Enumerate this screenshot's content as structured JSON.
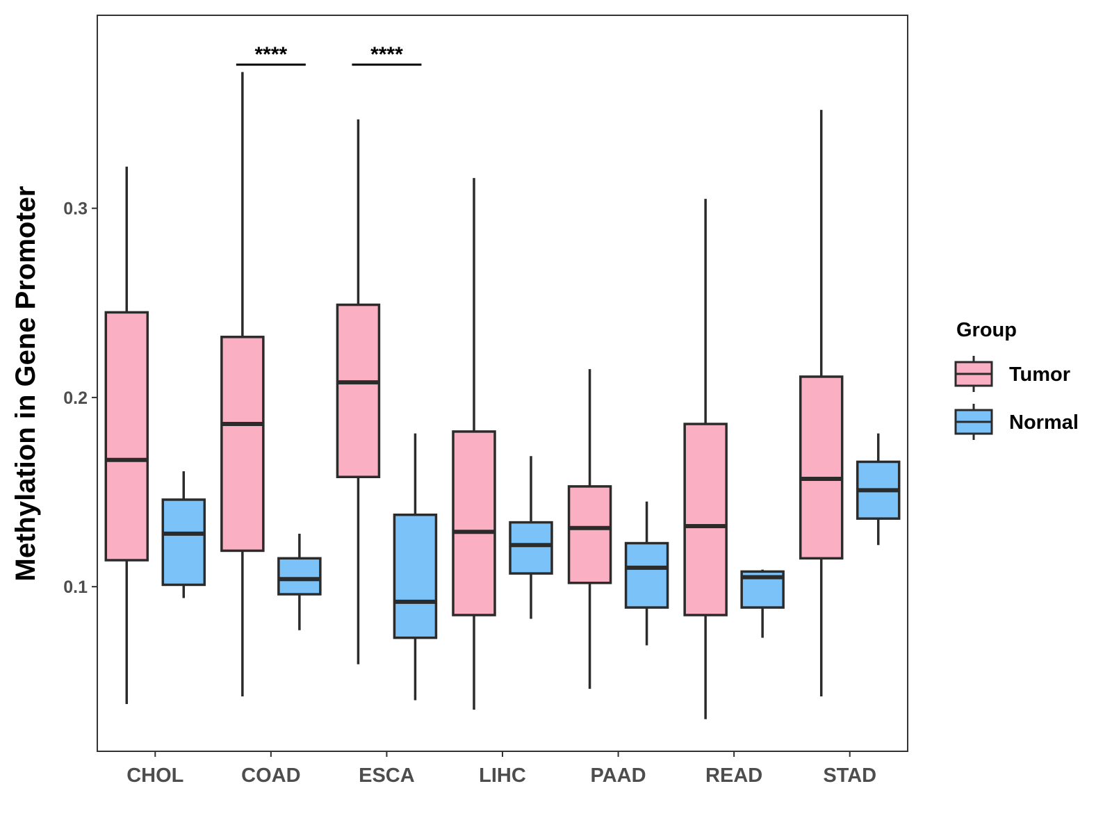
{
  "chart_data": {
    "type": "boxplot",
    "title": "",
    "xlabel": "",
    "ylabel": "Methylation in Gene Promoter",
    "ylim": [
      0.013,
      0.402
    ],
    "yticks": [
      0.1,
      0.2,
      0.3
    ],
    "ytick_labels": [
      "0.1",
      "0.2",
      "0.3"
    ],
    "categories": [
      "CHOL",
      "COAD",
      "ESCA",
      "LIHC",
      "PAAD",
      "READ",
      "STAD"
    ],
    "legend": {
      "title": "Group",
      "position": "right",
      "entries": [
        {
          "label": "Tumor",
          "color": "#FBAFC2"
        },
        {
          "label": "Normal",
          "color": "#7AC2F8"
        }
      ]
    },
    "series": [
      {
        "name": "Tumor",
        "color": "#FBAFC2",
        "boxes": [
          {
            "min": 0.038,
            "q1": 0.114,
            "median": 0.167,
            "q3": 0.245,
            "max": 0.322
          },
          {
            "min": 0.042,
            "q1": 0.119,
            "median": 0.186,
            "q3": 0.232,
            "max": 0.372
          },
          {
            "min": 0.059,
            "q1": 0.158,
            "median": 0.208,
            "q3": 0.249,
            "max": 0.347
          },
          {
            "min": 0.035,
            "q1": 0.085,
            "median": 0.129,
            "q3": 0.182,
            "max": 0.316
          },
          {
            "min": 0.046,
            "q1": 0.102,
            "median": 0.131,
            "q3": 0.153,
            "max": 0.215
          },
          {
            "min": 0.03,
            "q1": 0.085,
            "median": 0.132,
            "q3": 0.186,
            "max": 0.305
          },
          {
            "min": 0.042,
            "q1": 0.115,
            "median": 0.157,
            "q3": 0.211,
            "max": 0.352
          }
        ]
      },
      {
        "name": "Normal",
        "color": "#7AC2F8",
        "boxes": [
          {
            "min": 0.094,
            "q1": 0.101,
            "median": 0.128,
            "q3": 0.146,
            "max": 0.161
          },
          {
            "min": 0.077,
            "q1": 0.096,
            "median": 0.104,
            "q3": 0.115,
            "max": 0.128
          },
          {
            "min": 0.04,
            "q1": 0.073,
            "median": 0.092,
            "q3": 0.138,
            "max": 0.181
          },
          {
            "min": 0.083,
            "q1": 0.107,
            "median": 0.122,
            "q3": 0.134,
            "max": 0.169
          },
          {
            "min": 0.069,
            "q1": 0.089,
            "median": 0.11,
            "q3": 0.123,
            "max": 0.145
          },
          {
            "min": 0.073,
            "q1": 0.089,
            "median": 0.105,
            "q3": 0.108,
            "max": 0.109
          },
          {
            "min": 0.122,
            "q1": 0.136,
            "median": 0.151,
            "q3": 0.166,
            "max": 0.181
          }
        ]
      }
    ],
    "significance": [
      {
        "category": "COAD",
        "label": "****"
      },
      {
        "category": "ESCA",
        "label": "****"
      }
    ]
  }
}
